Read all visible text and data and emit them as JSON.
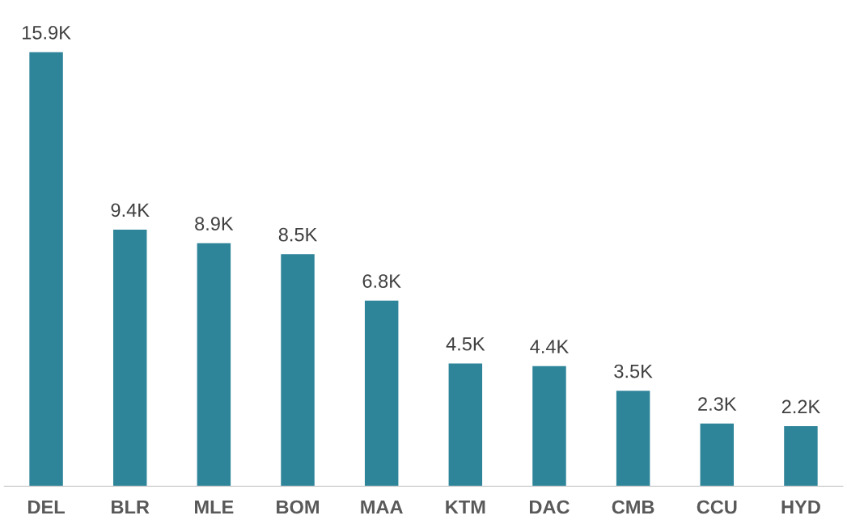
{
  "chart_data": {
    "type": "bar",
    "categories": [
      "DEL",
      "BLR",
      "MLE",
      "BOM",
      "MAA",
      "KTM",
      "DAC",
      "CMB",
      "CCU",
      "HYD"
    ],
    "values": [
      15.9,
      9.4,
      8.9,
      8.5,
      6.8,
      4.5,
      4.4,
      3.5,
      2.3,
      2.2
    ],
    "value_labels": [
      "15.9K",
      "9.4K",
      "8.9K",
      "8.5K",
      "6.8K",
      "4.5K",
      "4.4K",
      "3.5K",
      "2.3K",
      "2.2K"
    ],
    "color": "#2e8499",
    "tick_labels": "x",
    "grid": false,
    "legend": false
  }
}
